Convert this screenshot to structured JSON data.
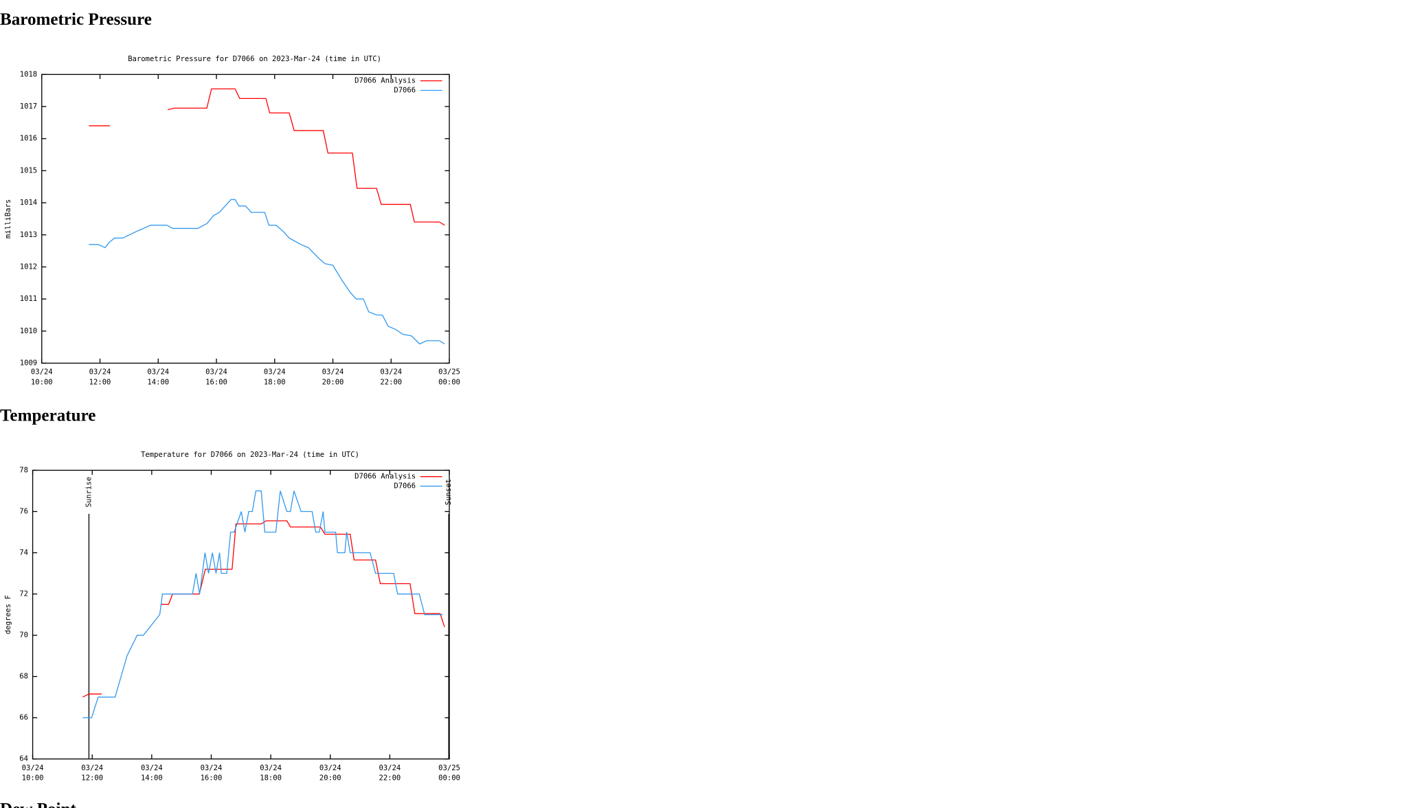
{
  "headings": [
    "Barometric Pressure",
    "Temperature",
    "Dew Point"
  ],
  "chart_data": [
    {
      "type": "line",
      "title": "Barometric Pressure for D7066 on 2023-Mar-24 (time in UTC)",
      "ylabel": "milliBars",
      "xlim": [
        10,
        24
      ],
      "ylim": [
        1009,
        1018
      ],
      "xticks": [
        {
          "value": 10,
          "label": "03/24 10:00"
        },
        {
          "value": 12,
          "label": "03/24 12:00"
        },
        {
          "value": 14,
          "label": "03/24 14:00"
        },
        {
          "value": 16,
          "label": "03/24 16:00"
        },
        {
          "value": 18,
          "label": "03/24 18:00"
        },
        {
          "value": 20,
          "label": "03/24 20:00"
        },
        {
          "value": 22,
          "label": "03/24 22:00"
        },
        {
          "value": 24,
          "label": "03/25 00:00"
        }
      ],
      "yticks": [
        1009,
        1010,
        1011,
        1012,
        1013,
        1014,
        1015,
        1016,
        1017,
        1018
      ],
      "legend": "upper right",
      "series": [
        {
          "name": "D7066 Analysis",
          "color": "#ff0000",
          "x": [
            11.62,
            12.34,
            null,
            14.33,
            14.55,
            15.67,
            15.83,
            16.64,
            16.8,
            17.7,
            17.83,
            18.5,
            18.67,
            19.67,
            19.83,
            20.67,
            20.83,
            21.5,
            21.66,
            22.66,
            22.8,
            23.66,
            23.84
          ],
          "values": [
            1016.4,
            1016.4,
            null,
            1016.9,
            1016.95,
            1016.95,
            1017.55,
            1017.55,
            1017.25,
            1017.25,
            1016.8,
            1016.8,
            1016.25,
            1016.25,
            1015.55,
            1015.55,
            1014.45,
            1014.45,
            1013.95,
            1013.95,
            1013.4,
            1013.4,
            1013.3
          ]
        },
        {
          "name": "D7066",
          "color": "#3399ee",
          "x": [
            11.62,
            11.93,
            12.18,
            12.3,
            12.5,
            12.78,
            13.24,
            13.74,
            14.3,
            14.5,
            15.36,
            15.67,
            15.9,
            16.1,
            16.3,
            16.5,
            16.64,
            16.77,
            17.0,
            17.2,
            17.66,
            17.8,
            18.05,
            18.3,
            18.5,
            18.7,
            18.9,
            19.16,
            19.48,
            19.73,
            20.0,
            20.3,
            20.6,
            20.8,
            21.05,
            21.23,
            21.5,
            21.7,
            21.9,
            22.16,
            22.4,
            22.7,
            22.98,
            23.22,
            23.66,
            23.84
          ],
          "values": [
            1012.7,
            1012.7,
            1012.6,
            1012.75,
            1012.9,
            1012.9,
            1013.1,
            1013.3,
            1013.3,
            1013.2,
            1013.2,
            1013.35,
            1013.6,
            1013.7,
            1013.9,
            1014.1,
            1014.1,
            1013.9,
            1013.9,
            1013.7,
            1013.7,
            1013.3,
            1013.3,
            1013.1,
            1012.9,
            1012.8,
            1012.7,
            1012.6,
            1012.3,
            1012.1,
            1012.05,
            1011.6,
            1011.2,
            1011.0,
            1011.0,
            1010.6,
            1010.5,
            1010.5,
            1010.15,
            1010.05,
            1009.9,
            1009.85,
            1009.6,
            1009.7,
            1009.7,
            1009.6
          ]
        }
      ]
    },
    {
      "type": "line",
      "title": "Temperature for D7066 on 2023-Mar-24 (time in UTC)",
      "ylabel": "degrees F",
      "xlim": [
        10,
        24
      ],
      "ylim": [
        64,
        78
      ],
      "xticks": [
        {
          "value": 10,
          "label": "03/24 10:00"
        },
        {
          "value": 12,
          "label": "03/24 12:00"
        },
        {
          "value": 14,
          "label": "03/24 14:00"
        },
        {
          "value": 16,
          "label": "03/24 16:00"
        },
        {
          "value": 18,
          "label": "03/24 18:00"
        },
        {
          "value": 20,
          "label": "03/24 20:00"
        },
        {
          "value": 22,
          "label": "03/24 22:00"
        },
        {
          "value": 24,
          "label": "03/25 00:00"
        }
      ],
      "yticks": [
        64,
        66,
        68,
        70,
        72,
        74,
        76,
        78
      ],
      "legend": "upper right",
      "annotations": [
        {
          "text": "Sunrise",
          "x": 11.89
        },
        {
          "text": "Sunset",
          "x": 23.98
        }
      ],
      "series": [
        {
          "name": "D7066 Analysis",
          "color": "#ff0000",
          "x": [
            11.68,
            11.89,
            12.32,
            null,
            14.3,
            14.57,
            14.7,
            15.6,
            15.8,
            16.7,
            16.83,
            17.68,
            17.84,
            18.54,
            18.66,
            19.67,
            19.82,
            20.67,
            20.8,
            21.52,
            21.68,
            22.68,
            22.84,
            23.69,
            23.84
          ],
          "values": [
            67.0,
            67.15,
            67.15,
            null,
            71.5,
            71.5,
            72.0,
            72.0,
            73.2,
            73.2,
            75.4,
            75.4,
            75.55,
            75.55,
            75.25,
            75.25,
            74.9,
            74.9,
            73.65,
            73.65,
            72.5,
            72.5,
            71.05,
            71.05,
            70.4
          ]
        },
        {
          "name": "D7066",
          "color": "#3399ee",
          "x": [
            11.68,
            11.98,
            12.2,
            12.77,
            13.17,
            13.51,
            13.72,
            14.27,
            14.36,
            15.37,
            15.49,
            15.61,
            15.79,
            15.91,
            16.04,
            16.16,
            16.28,
            16.34,
            16.52,
            16.65,
            16.77,
            16.89,
            17.01,
            17.13,
            17.26,
            17.38,
            17.5,
            17.68,
            17.8,
            18.17,
            18.32,
            18.54,
            18.66,
            18.78,
            19.02,
            19.39,
            19.51,
            19.63,
            19.76,
            19.82,
            20.18,
            20.24,
            20.49,
            20.55,
            20.67,
            21.34,
            21.52,
            22.13,
            22.26,
            22.99,
            23.17,
            23.78
          ],
          "values": [
            66,
            66,
            67,
            67,
            69,
            70,
            70,
            71,
            72,
            72,
            73,
            72,
            74,
            73,
            74,
            73,
            74,
            73,
            73,
            75,
            75,
            75.5,
            76,
            75,
            76,
            76,
            77,
            77,
            75,
            75,
            77,
            76,
            76,
            77,
            76,
            76,
            75,
            75,
            76,
            75,
            75,
            74,
            74,
            75,
            74,
            74,
            73,
            73,
            72,
            72,
            71,
            71
          ]
        }
      ]
    }
  ]
}
